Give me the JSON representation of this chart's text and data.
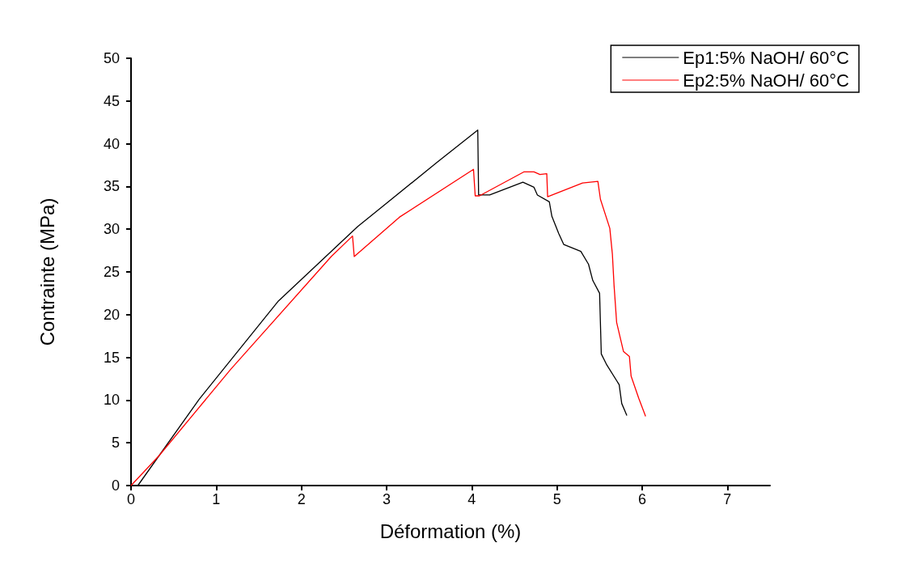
{
  "chart_data": {
    "type": "line",
    "xlabel": "Déformation (%)",
    "ylabel": "Contrainte (MPa)",
    "xlim": [
      0,
      7.5
    ],
    "xticks": [
      0,
      1,
      2,
      3,
      4,
      5,
      6,
      7
    ],
    "ylim": [
      0,
      50
    ],
    "yticks": [
      0,
      5,
      10,
      15,
      20,
      25,
      30,
      35,
      40,
      45,
      50
    ],
    "grid": false,
    "legend": "top right",
    "marker": "none",
    "line_style": "solid",
    "series": [
      {
        "name": "Ep1:5% NaOH/ 60°C",
        "color": "#000000",
        "x": [
          0.08,
          0.8,
          1.73,
          2.66,
          3.59,
          4.07,
          4.08,
          4.21,
          4.6,
          4.73,
          4.77,
          4.91,
          4.94,
          5.02,
          5.08,
          5.28,
          5.37,
          5.42,
          5.5,
          5.52,
          5.58,
          5.73,
          5.76,
          5.82
        ],
        "values": [
          0,
          10.1,
          21.6,
          30.3,
          37.8,
          41.6,
          34.0,
          34.0,
          35.5,
          34.9,
          34.0,
          33.2,
          31.5,
          29.5,
          28.2,
          27.4,
          25.9,
          24.0,
          22.5,
          15.4,
          14.2,
          11.8,
          9.6,
          8.2
        ]
      },
      {
        "name": "Ep2:5% NaOH/ 60°C",
        "color": "#ff0000",
        "x": [
          0,
          0.33,
          1.17,
          2.35,
          2.6,
          2.62,
          3.15,
          4.02,
          4.04,
          4.09,
          4.61,
          4.73,
          4.8,
          4.88,
          4.89,
          5.3,
          5.48,
          5.51,
          5.62,
          5.65,
          5.67,
          5.7,
          5.78,
          5.85,
          5.87,
          5.96,
          6.04
        ],
        "values": [
          0,
          3.5,
          13.6,
          26.8,
          29.2,
          26.8,
          31.4,
          37.0,
          33.9,
          33.9,
          36.7,
          36.7,
          36.4,
          36.5,
          33.8,
          35.4,
          35.6,
          33.5,
          30.1,
          27.1,
          23.4,
          19.1,
          15.7,
          15.1,
          12.8,
          10.2,
          8.1
        ]
      }
    ]
  }
}
